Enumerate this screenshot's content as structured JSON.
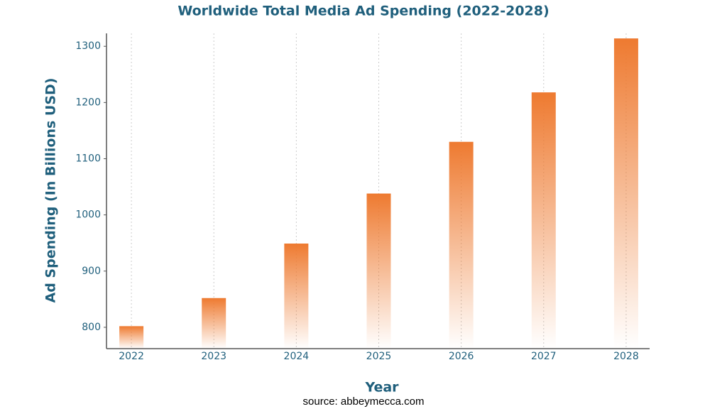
{
  "chart_data": {
    "type": "bar",
    "title": "Worldwide Total Media Ad Spending (2022-2028)",
    "x_label": "Year",
    "y_label": "Ad Spending (In Billions USD)",
    "categories": [
      "2022",
      "2023",
      "2024",
      "2025",
      "2026",
      "2027",
      "2028"
    ],
    "values": [
      802,
      852,
      949,
      1038,
      1130,
      1218,
      1314
    ],
    "color": "#ee7a30",
    "ylim": [
      762,
      1323
    ],
    "yticks": [
      800,
      900,
      1000,
      1100,
      1200,
      1300
    ],
    "grid": true,
    "source": "source: abbeymecca.com"
  }
}
